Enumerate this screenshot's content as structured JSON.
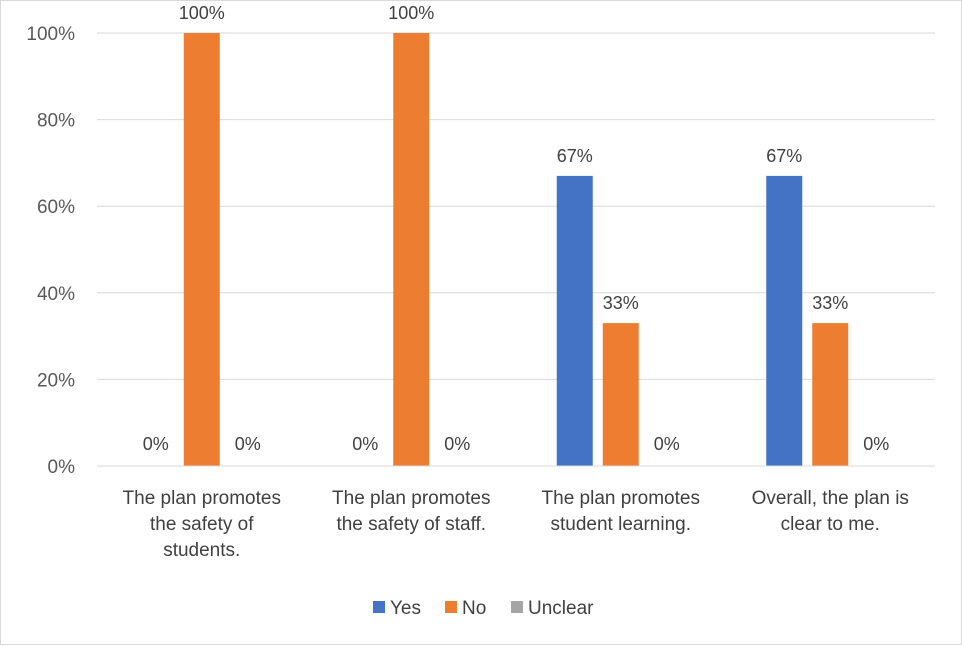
{
  "chart_data": {
    "type": "bar",
    "categories": [
      [
        "The plan promotes",
        "the safety of",
        "students."
      ],
      [
        "The plan promotes",
        "the safety of staff."
      ],
      [
        "The plan promotes",
        "student learning."
      ],
      [
        "Overall, the plan is",
        "clear to me."
      ]
    ],
    "series": [
      {
        "name": "Yes",
        "values": [
          0,
          0,
          67,
          67
        ],
        "labels": [
          "0%",
          "0%",
          "67%",
          "67%"
        ],
        "color": "#4472c4"
      },
      {
        "name": "No",
        "values": [
          100,
          100,
          33,
          33
        ],
        "labels": [
          "100%",
          "100%",
          "33%",
          "33%"
        ],
        "color": "#ed7d31"
      },
      {
        "name": "Unclear",
        "values": [
          0,
          0,
          0,
          0
        ],
        "labels": [
          "0%",
          "0%",
          "0%",
          "0%"
        ],
        "color": "#a5a5a5"
      }
    ],
    "ylim": [
      0,
      100
    ],
    "yticks": [
      0,
      20,
      40,
      60,
      80,
      100
    ],
    "ytick_labels": [
      "0%",
      "20%",
      "40%",
      "60%",
      "80%",
      "100%"
    ],
    "grid": true,
    "legend": "bottom",
    "title": "",
    "xlabel": "",
    "ylabel": ""
  }
}
